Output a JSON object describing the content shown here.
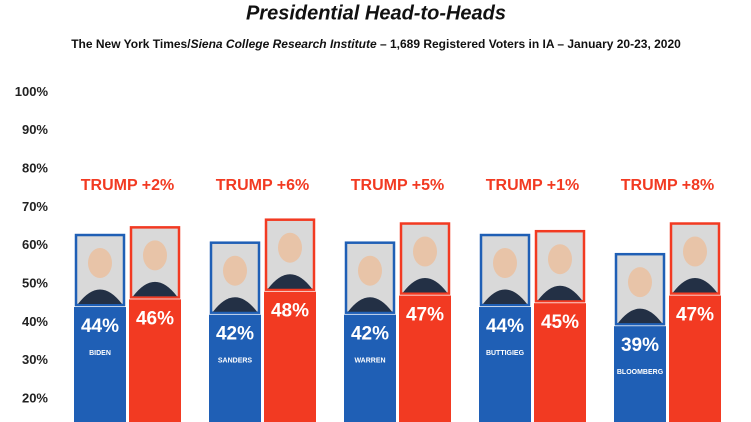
{
  "chart_data": {
    "type": "bar",
    "title": "Presidential Head-to-Heads",
    "subtitle": [
      "The New York Times/",
      "Siena College Research Institute",
      " – 1,689 Registered Voters in IA – January 20-23, 2020"
    ],
    "categories": [
      "BIDEN",
      "SANDERS",
      "WARREN",
      "BUTTIGIEG",
      "BLOOMBERG"
    ],
    "series": [
      {
        "color": "#1f5fb5",
        "values": [
          44,
          42,
          42,
          44,
          39
        ],
        "value_labels": [
          "44%",
          "42%",
          "42%",
          "44%",
          "39%"
        ]
      },
      {
        "color": "#f23a22",
        "values": [
          46,
          48,
          47,
          45,
          47
        ],
        "value_labels": [
          "46%",
          "48%",
          "47%",
          "45%",
          "47%"
        ]
      }
    ],
    "annotations": [
      "TRUMP +2%",
      "TRUMP +6%",
      "TRUMP +5%",
      "TRUMP +1%",
      "TRUMP +8%"
    ],
    "ylim": [
      14,
      100
    ],
    "yticks": [
      {
        "value": 20,
        "label": "20%"
      },
      {
        "value": 30,
        "label": "30%"
      },
      {
        "value": 40,
        "label": "40%"
      },
      {
        "value": 50,
        "label": "50%"
      },
      {
        "value": 60,
        "label": "60%"
      },
      {
        "value": 70,
        "label": "70%"
      },
      {
        "value": 80,
        "label": "80%"
      },
      {
        "value": 90,
        "label": "90%"
      },
      {
        "value": 100,
        "label": "100%"
      }
    ],
    "grid": false
  }
}
